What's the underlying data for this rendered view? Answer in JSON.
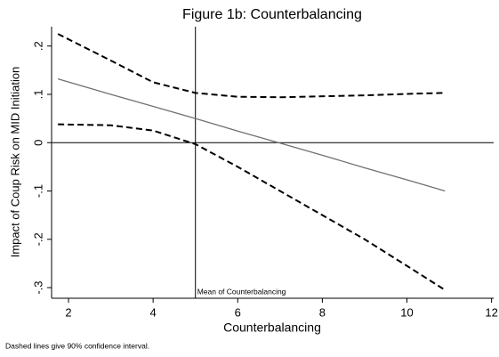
{
  "chart_data": {
    "type": "line",
    "title": "Figure 1b: Counterbalancing",
    "x_label": "Counterbalancing",
    "y_label": "Impact of Coup Risk on MID Initiation",
    "note": "Dashed lines give 90% confidence interval.",
    "x": [
      1.75,
      3,
      4,
      5,
      6,
      7,
      8,
      9,
      10,
      10.9
    ],
    "series": [
      {
        "color": "#707070",
        "dash": false,
        "values": [
          0.132,
          0.1,
          0.075,
          0.05,
          0.024,
          -0.001,
          -0.026,
          -0.052,
          -0.077,
          -0.1
        ]
      },
      {
        "color": "#000000",
        "dash": true,
        "values": [
          0.225,
          0.17,
          0.125,
          0.103,
          0.095,
          0.094,
          0.096,
          0.098,
          0.101,
          0.103
        ]
      },
      {
        "color": "#000000",
        "dash": true,
        "values": [
          0.038,
          0.036,
          0.025,
          -0.003,
          -0.05,
          -0.1,
          -0.15,
          -0.2,
          -0.255,
          -0.305
        ]
      }
    ],
    "hline": 0,
    "vline": {
      "x": 5,
      "label": "Mean of Counterbalancing"
    },
    "xlim": [
      1.6,
      12.05
    ],
    "ylim": [
      -0.322,
      0.24
    ],
    "xticks": [
      2,
      4,
      6,
      8,
      10,
      12
    ],
    "yticks": [
      {
        "value": -0.3,
        "label": "-.3"
      },
      {
        "value": -0.2,
        "label": "-.2"
      },
      {
        "value": -0.1,
        "label": "-.1"
      },
      0,
      {
        "value": 0.1,
        "label": ".1"
      },
      {
        "value": 0.2,
        "label": ".2"
      }
    ]
  }
}
